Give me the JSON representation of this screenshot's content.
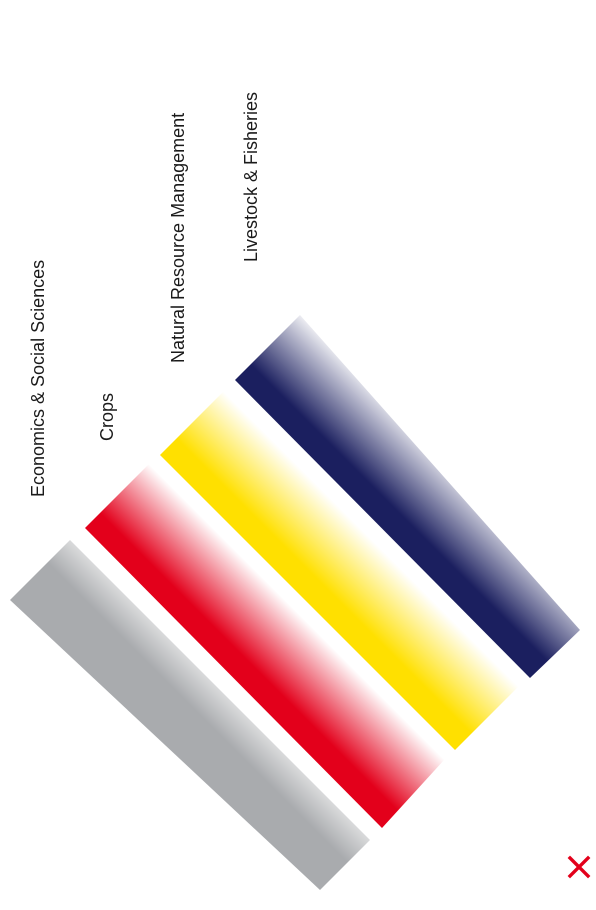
{
  "categories": [
    {
      "label": "Economics & Social Sciences",
      "color": "#a9abae"
    },
    {
      "label": "Crops",
      "color": "#e3001b"
    },
    {
      "label": "Natural Resource Management",
      "color": "#ffe000"
    },
    {
      "label": "Livestock & Fisheries",
      "color": "#1b1f5f"
    }
  ],
  "close_icon": {
    "name": "close-icon",
    "color": "#e3001b"
  }
}
